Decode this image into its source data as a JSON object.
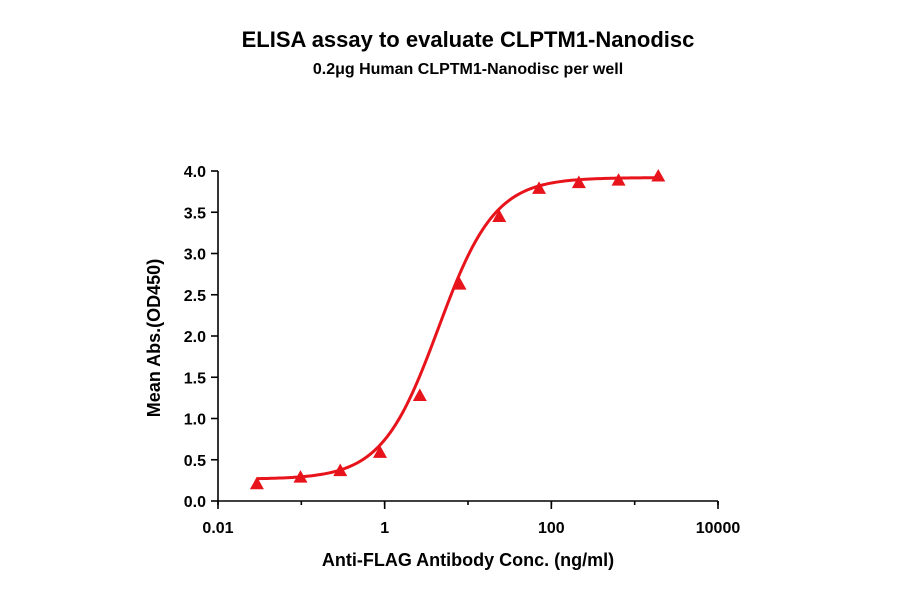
{
  "chart_data": {
    "type": "scatter",
    "title": "ELISA assay to evaluate CLPTM1-Nanodisc",
    "subtitle": "0.2μg Human CLPTM1-Nanodisc per well",
    "xlabel": "Anti-FLAG Antibody Conc. (ng/ml)",
    "ylabel": "Mean Abs.(OD450)",
    "xscale": "log",
    "xlim": [
      0.01,
      10000
    ],
    "ylim": [
      0,
      4
    ],
    "xticks": [
      0.01,
      1,
      100,
      10000
    ],
    "xtick_labels": [
      "0.01",
      "1",
      "100",
      "10000"
    ],
    "yticks": [
      0,
      0.5,
      1,
      1.5,
      2,
      2.5,
      3,
      3.5,
      4
    ],
    "ytick_labels": [
      "0.0",
      "0.5",
      "1.0",
      "1.5",
      "2.0",
      "2.5",
      "3.0",
      "3.5",
      "4.0"
    ],
    "marker": "triangle",
    "color": "#e8141b",
    "grid": false,
    "series": [
      {
        "x": [
          0.0293,
          0.0977,
          0.293,
          0.879,
          2.64,
          7.91,
          23.7,
          71.2,
          214,
          641,
          1920
        ],
        "y": [
          0.21,
          0.29,
          0.37,
          0.59,
          1.28,
          2.63,
          3.45,
          3.79,
          3.86,
          3.89,
          3.94
        ]
      }
    ],
    "fit": {
      "model": "4PL",
      "bottom": 0.265,
      "top": 3.92,
      "ec50": 4.4,
      "hill": 1.28
    }
  }
}
